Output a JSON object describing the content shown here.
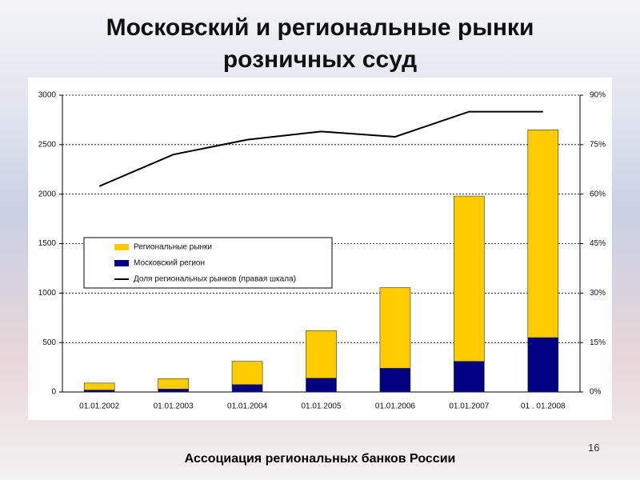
{
  "slide": {
    "title_lines": [
      "Московский и региональные рынки",
      "розничных ссуд"
    ],
    "footer": "Ассоциация региональных банков России",
    "page_number": "16"
  },
  "chart_data": {
    "type": "bar",
    "stacked": true,
    "categories": [
      "01.01.2002",
      "01.01.2003",
      "01.01.2004",
      "01.01.2005",
      "01.01.2006",
      "01.01.2007",
      "01 . 01.2008"
    ],
    "series": [
      {
        "name": "Региональные рынки",
        "color": "#ffcc00",
        "values": [
          70,
          105,
          235,
          480,
          815,
          1670,
          2100
        ]
      },
      {
        "name": "Московский регион",
        "color": "#000080",
        "values": [
          20,
          30,
          75,
          140,
          240,
          310,
          550
        ]
      },
      {
        "name": "Доля региональных рынков (правая шкала)",
        "color": "#000000",
        "type": "line",
        "axis": "y2",
        "values": [
          62.4,
          72,
          76.5,
          79,
          77.4,
          85,
          85
        ]
      }
    ],
    "ylim": [
      0,
      3000
    ],
    "yticks": [
      0,
      500,
      1000,
      1500,
      2000,
      2500,
      3000
    ],
    "y2lim": [
      0,
      90
    ],
    "y2ticks": [
      {
        "value": 0,
        "label": "0%"
      },
      {
        "value": 15,
        "label": "15%"
      },
      {
        "value": 30,
        "label": "30%"
      },
      {
        "value": 45,
        "label": "45%"
      },
      {
        "value": 60,
        "label": "60%"
      },
      {
        "value": 75,
        "label": "75%"
      },
      {
        "value": 90,
        "label": "90%"
      }
    ],
    "grid": true,
    "legend": "middle-left"
  }
}
